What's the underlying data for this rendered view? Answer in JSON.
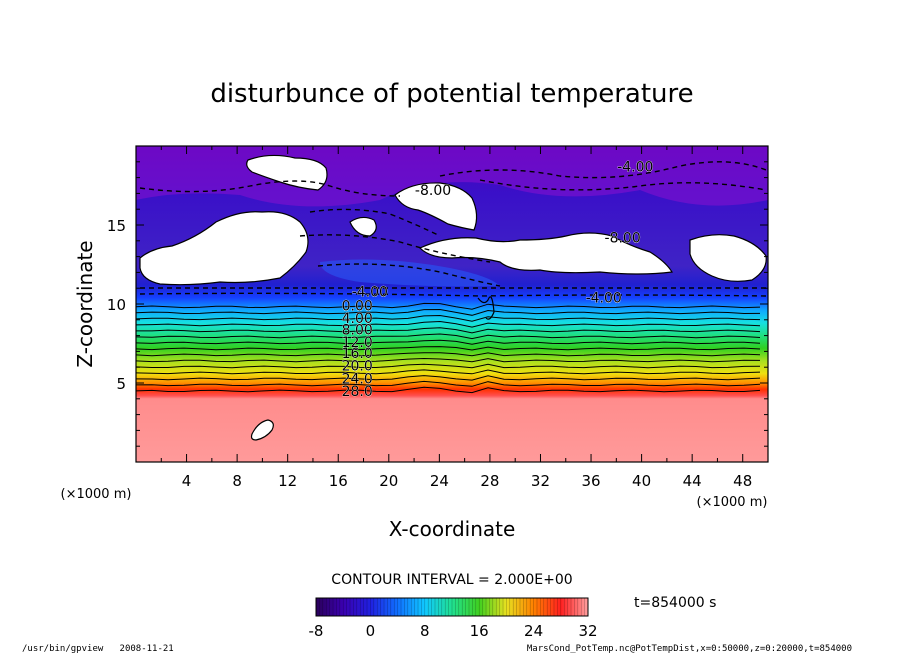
{
  "chart_data": {
    "type": "heatmap",
    "title": "disturbunce of potential temperature",
    "xlabel": "X-coordinate",
    "ylabel": "Z-coordinate",
    "x_unit": "(×1000 m)",
    "y_unit": "(×1000 m)",
    "xlim": [
      0,
      50
    ],
    "ylim": [
      0,
      20
    ],
    "x_ticks": [
      4,
      8,
      12,
      16,
      20,
      24,
      28,
      32,
      36,
      40,
      44,
      48
    ],
    "y_ticks": [
      5,
      10,
      15
    ],
    "contour_interval": "CONTOUR INTERVAL = 2.000E+00",
    "contour_labels": [
      {
        "text": "-8.00",
        "x": 23.5,
        "z": 17.2
      },
      {
        "text": "-4.00",
        "x": 39.5,
        "z": 18.7
      },
      {
        "text": "-8.00",
        "x": 38.5,
        "z": 14.2
      },
      {
        "text": "-4.00",
        "x": 37.0,
        "z": 10.4
      },
      {
        "text": "-4.00",
        "x": 18.5,
        "z": 10.8
      },
      {
        "text": "0.00",
        "x": 17.5,
        "z": 9.9
      },
      {
        "text": "4.00",
        "x": 17.5,
        "z": 9.1
      },
      {
        "text": "8.00",
        "x": 17.5,
        "z": 8.4
      },
      {
        "text": "12.0",
        "x": 17.5,
        "z": 7.6
      },
      {
        "text": "16.0",
        "x": 17.5,
        "z": 6.9
      },
      {
        "text": "20.0",
        "x": 17.5,
        "z": 6.1
      },
      {
        "text": "24.0",
        "x": 17.5,
        "z": 5.3
      },
      {
        "text": "28.0",
        "x": 17.5,
        "z": 4.5
      }
    ],
    "colorbar": {
      "min": -8,
      "max": 32,
      "ticks": [
        -8,
        0,
        8,
        16,
        24,
        32
      ]
    },
    "time_label": "t=854000 s"
  },
  "footer": {
    "left": "/usr/bin/gpview   2008-11-21",
    "right": "MarsCond_PotTemp.nc@PotTempDist,x=0:50000,z=0:20000,t=854000"
  }
}
